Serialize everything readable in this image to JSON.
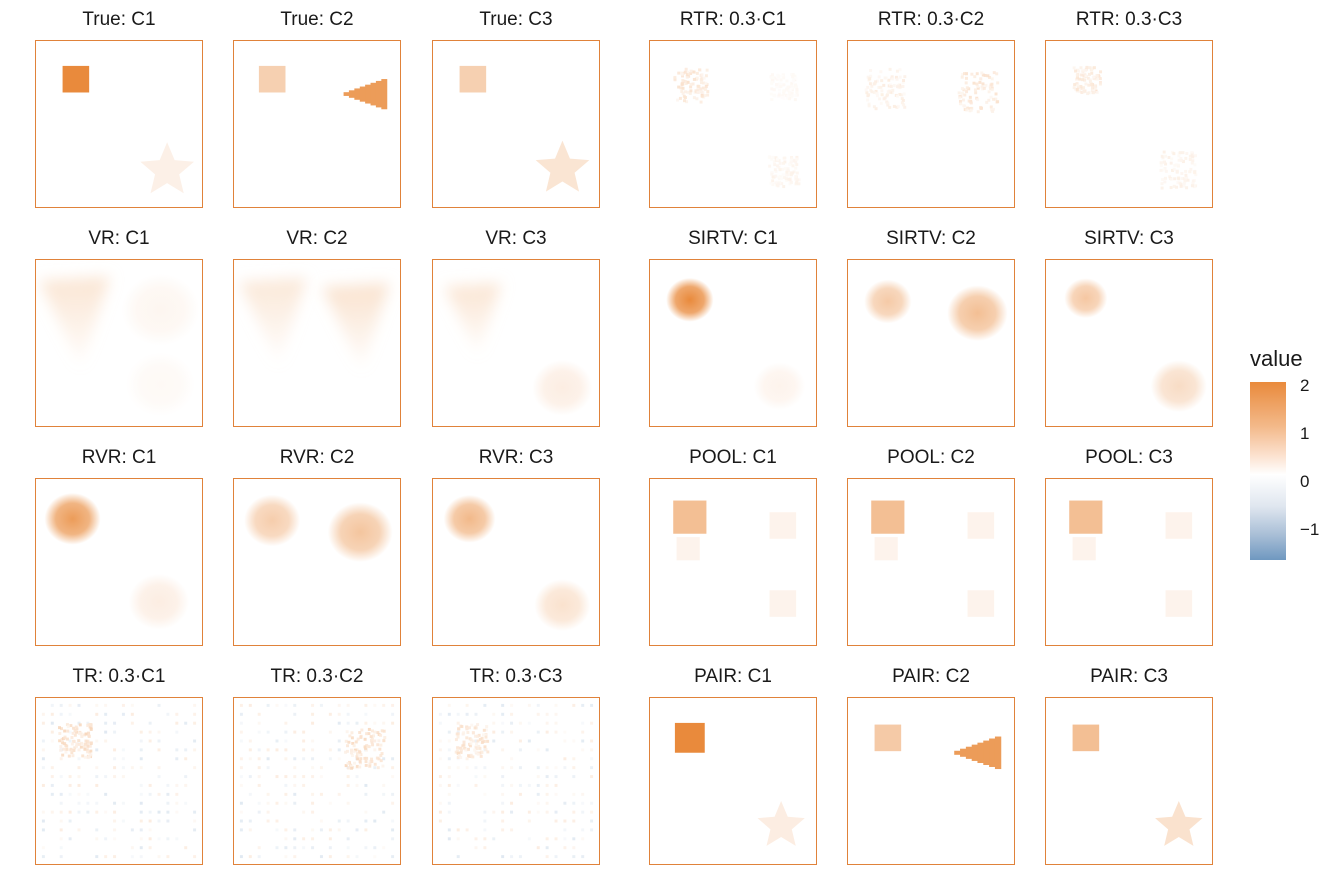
{
  "chart_data": {
    "type": "heatmap",
    "legend": {
      "title": "value",
      "placement": "right",
      "range": [
        -1.6,
        2.1
      ],
      "ticks": [
        2,
        1,
        0,
        -1
      ],
      "tick_labels": [
        "2",
        "1",
        "0",
        "−1"
      ],
      "colors": {
        "high": "#e98a3c",
        "mid": "#ffffff",
        "low": "#6f98c0"
      }
    },
    "panel_border_color": "#e0823a",
    "panels": [
      {
        "title": "True: C1",
        "shapes": [
          {
            "type": "square",
            "cx": 0.24,
            "cy": 0.23,
            "r": 0.08,
            "value": 2.0
          },
          {
            "type": "star",
            "cx": 0.79,
            "cy": 0.78,
            "r": 0.17,
            "value": 0.25
          }
        ]
      },
      {
        "title": "True: C2",
        "shapes": [
          {
            "type": "square",
            "cx": 0.23,
            "cy": 0.23,
            "r": 0.08,
            "value": 0.8
          },
          {
            "type": "triangle",
            "cx": 0.79,
            "cy": 0.32,
            "r": 0.13,
            "value": 1.7
          }
        ]
      },
      {
        "title": "True: C3",
        "shapes": [
          {
            "type": "square",
            "cx": 0.24,
            "cy": 0.23,
            "r": 0.08,
            "value": 0.8
          },
          {
            "type": "star",
            "cx": 0.78,
            "cy": 0.77,
            "r": 0.17,
            "value": 0.45
          }
        ]
      },
      {
        "title": "RTR: 0.3·C1",
        "shapes": [
          {
            "type": "noise",
            "cx": 0.24,
            "cy": 0.26,
            "r": 0.1,
            "value": 0.45
          },
          {
            "type": "noise",
            "cx": 0.8,
            "cy": 0.27,
            "r": 0.08,
            "value": 0.12
          },
          {
            "type": "noise",
            "cx": 0.8,
            "cy": 0.78,
            "r": 0.09,
            "value": 0.2
          }
        ]
      },
      {
        "title": "RTR: 0.3·C2",
        "shapes": [
          {
            "type": "noise",
            "cx": 0.22,
            "cy": 0.28,
            "r": 0.12,
            "value": 0.3
          },
          {
            "type": "noise",
            "cx": 0.78,
            "cy": 0.3,
            "r": 0.12,
            "value": 0.45
          }
        ]
      },
      {
        "title": "RTR: 0.3·C3",
        "shapes": [
          {
            "type": "noise",
            "cx": 0.24,
            "cy": 0.23,
            "r": 0.08,
            "value": 0.4
          },
          {
            "type": "noise",
            "cx": 0.79,
            "cy": 0.77,
            "r": 0.11,
            "value": 0.25
          }
        ]
      },
      {
        "title": "VR: C1",
        "shapes": [
          {
            "type": "blur-tri",
            "cx": 0.27,
            "cy": 0.3,
            "r": 0.25,
            "value": 0.5
          },
          {
            "type": "blob",
            "cx": 0.75,
            "cy": 0.3,
            "r": 0.18,
            "value": 0.15
          },
          {
            "type": "blob",
            "cx": 0.75,
            "cy": 0.75,
            "r": 0.16,
            "value": 0.1
          }
        ]
      },
      {
        "title": "VR: C2",
        "shapes": [
          {
            "type": "blur-tri",
            "cx": 0.27,
            "cy": 0.3,
            "r": 0.24,
            "value": 0.45
          },
          {
            "type": "blur-tri",
            "cx": 0.77,
            "cy": 0.33,
            "r": 0.24,
            "value": 0.55
          }
        ]
      },
      {
        "title": "VR: C3",
        "shapes": [
          {
            "type": "blur-tri",
            "cx": 0.27,
            "cy": 0.3,
            "r": 0.2,
            "value": 0.5
          },
          {
            "type": "blob",
            "cx": 0.78,
            "cy": 0.77,
            "r": 0.14,
            "value": 0.3
          }
        ]
      },
      {
        "title": "SIRTV: C1",
        "shapes": [
          {
            "type": "blob",
            "cx": 0.24,
            "cy": 0.24,
            "r": 0.11,
            "value": 2.0
          },
          {
            "type": "blob",
            "cx": 0.78,
            "cy": 0.76,
            "r": 0.12,
            "value": 0.2
          }
        ]
      },
      {
        "title": "SIRTV: C2",
        "shapes": [
          {
            "type": "blob",
            "cx": 0.24,
            "cy": 0.25,
            "r": 0.11,
            "value": 0.9
          },
          {
            "type": "blob",
            "cx": 0.78,
            "cy": 0.32,
            "r": 0.14,
            "value": 1.1
          }
        ]
      },
      {
        "title": "SIRTV: C3",
        "shapes": [
          {
            "type": "blob",
            "cx": 0.24,
            "cy": 0.23,
            "r": 0.1,
            "value": 0.95
          },
          {
            "type": "blob",
            "cx": 0.8,
            "cy": 0.76,
            "r": 0.13,
            "value": 0.6
          }
        ]
      },
      {
        "title": "RVR: C1",
        "shapes": [
          {
            "type": "blob",
            "cx": 0.22,
            "cy": 0.24,
            "r": 0.13,
            "value": 1.7
          },
          {
            "type": "blob",
            "cx": 0.74,
            "cy": 0.74,
            "r": 0.14,
            "value": 0.3
          }
        ]
      },
      {
        "title": "RVR: C2",
        "shapes": [
          {
            "type": "blob",
            "cx": 0.23,
            "cy": 0.25,
            "r": 0.13,
            "value": 0.85
          },
          {
            "type": "blob",
            "cx": 0.76,
            "cy": 0.32,
            "r": 0.15,
            "value": 1.0
          }
        ]
      },
      {
        "title": "RVR: C3",
        "shapes": [
          {
            "type": "blob",
            "cx": 0.22,
            "cy": 0.24,
            "r": 0.12,
            "value": 1.2
          },
          {
            "type": "blob",
            "cx": 0.78,
            "cy": 0.76,
            "r": 0.13,
            "value": 0.5
          }
        ]
      },
      {
        "title": "POOL: C1",
        "shapes": [
          {
            "type": "square",
            "cx": 0.24,
            "cy": 0.23,
            "r": 0.1,
            "value": 1.1
          },
          {
            "type": "square",
            "cx": 0.23,
            "cy": 0.42,
            "r": 0.07,
            "value": 0.2
          },
          {
            "type": "square",
            "cx": 0.8,
            "cy": 0.28,
            "r": 0.08,
            "value": 0.2
          },
          {
            "type": "square",
            "cx": 0.8,
            "cy": 0.75,
            "r": 0.08,
            "value": 0.2
          }
        ]
      },
      {
        "title": "POOL: C2",
        "shapes": [
          {
            "type": "square",
            "cx": 0.24,
            "cy": 0.23,
            "r": 0.1,
            "value": 1.1
          },
          {
            "type": "square",
            "cx": 0.23,
            "cy": 0.42,
            "r": 0.07,
            "value": 0.2
          },
          {
            "type": "square",
            "cx": 0.8,
            "cy": 0.28,
            "r": 0.08,
            "value": 0.2
          },
          {
            "type": "square",
            "cx": 0.8,
            "cy": 0.75,
            "r": 0.08,
            "value": 0.2
          }
        ]
      },
      {
        "title": "POOL: C3",
        "shapes": [
          {
            "type": "square",
            "cx": 0.24,
            "cy": 0.23,
            "r": 0.1,
            "value": 1.1
          },
          {
            "type": "square",
            "cx": 0.23,
            "cy": 0.42,
            "r": 0.07,
            "value": 0.2
          },
          {
            "type": "square",
            "cx": 0.8,
            "cy": 0.28,
            "r": 0.08,
            "value": 0.2
          },
          {
            "type": "square",
            "cx": 0.8,
            "cy": 0.75,
            "r": 0.08,
            "value": 0.2
          }
        ]
      },
      {
        "title": "TR: 0.3·C1",
        "shapes": [
          {
            "type": "grid-noise",
            "value": 0.3
          },
          {
            "type": "noise",
            "cx": 0.23,
            "cy": 0.25,
            "r": 0.1,
            "value": 0.6
          }
        ]
      },
      {
        "title": "TR: 0.3·C2",
        "shapes": [
          {
            "type": "grid-noise",
            "value": 0.3
          },
          {
            "type": "noise",
            "cx": 0.78,
            "cy": 0.3,
            "r": 0.12,
            "value": 0.6
          }
        ]
      },
      {
        "title": "TR: 0.3·C3",
        "shapes": [
          {
            "type": "grid-noise",
            "value": 0.3
          },
          {
            "type": "noise",
            "cx": 0.23,
            "cy": 0.25,
            "r": 0.1,
            "value": 0.5
          }
        ]
      },
      {
        "title": "PAIR: C1",
        "shapes": [
          {
            "type": "square",
            "cx": 0.24,
            "cy": 0.24,
            "r": 0.09,
            "value": 2.0
          },
          {
            "type": "star",
            "cx": 0.79,
            "cy": 0.77,
            "r": 0.15,
            "value": 0.3
          }
        ]
      },
      {
        "title": "PAIR: C2",
        "shapes": [
          {
            "type": "square",
            "cx": 0.24,
            "cy": 0.24,
            "r": 0.08,
            "value": 0.9
          },
          {
            "type": "triangle",
            "cx": 0.78,
            "cy": 0.33,
            "r": 0.14,
            "value": 1.7
          }
        ]
      },
      {
        "title": "PAIR: C3",
        "shapes": [
          {
            "type": "square",
            "cx": 0.24,
            "cy": 0.24,
            "r": 0.08,
            "value": 1.1
          },
          {
            "type": "star",
            "cx": 0.8,
            "cy": 0.77,
            "r": 0.15,
            "value": 0.5
          }
        ]
      }
    ]
  }
}
